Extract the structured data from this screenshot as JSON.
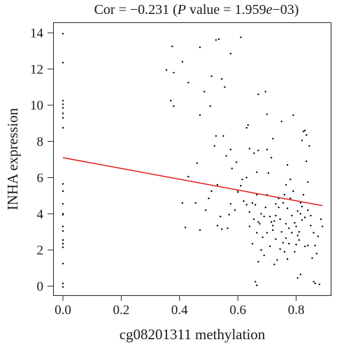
{
  "chart_data": {
    "type": "scatter",
    "title": {
      "prefix": "Cor = −0.231 (",
      "p_italic": "P",
      "middle": " value = 1.959",
      "e_italic": "e",
      "suffix": "−03)"
    },
    "xlabel": "cg08201311 methylation",
    "ylabel": "INHA expression",
    "xlim": [
      0,
      0.9
    ],
    "ylim": [
      -0.5,
      14.5
    ],
    "x_ticks": [
      0.0,
      0.2,
      0.4,
      0.6,
      0.8
    ],
    "x_tick_labels": [
      "0.0",
      "0.2",
      "0.4",
      "0.6",
      "0.8"
    ],
    "y_ticks": [
      0,
      2,
      4,
      6,
      8,
      10,
      12,
      14
    ],
    "y_tick_labels": [
      "0",
      "2",
      "4",
      "6",
      "8",
      "10",
      "12",
      "14"
    ],
    "grid": false,
    "point_color": "#000000",
    "fit_line": {
      "color": "#e31a1c",
      "x": [
        0.0,
        0.89
      ],
      "y": [
        7.1,
        4.45
      ]
    },
    "points": [
      [
        0.0,
        13.95
      ],
      [
        0.0,
        12.35
      ],
      [
        0.0,
        10.25
      ],
      [
        0.0,
        10.05
      ],
      [
        0.0,
        9.85
      ],
      [
        0.0,
        9.55
      ],
      [
        0.0,
        9.3
      ],
      [
        0.0,
        8.75
      ],
      [
        0.0,
        5.65
      ],
      [
        0.0,
        5.25
      ],
      [
        0.0,
        4.55
      ],
      [
        0.0,
        4.0
      ],
      [
        0.0,
        3.95
      ],
      [
        0.0,
        3.3
      ],
      [
        0.0,
        3.05
      ],
      [
        0.0,
        2.55
      ],
      [
        0.0,
        2.35
      ],
      [
        0.0,
        2.15
      ],
      [
        0.0,
        1.25
      ],
      [
        0.0,
        0.15
      ],
      [
        0.0,
        -0.05
      ],
      [
        0.355,
        11.95
      ],
      [
        0.375,
        13.25
      ],
      [
        0.38,
        11.8
      ],
      [
        0.37,
        10.25
      ],
      [
        0.38,
        9.95
      ],
      [
        0.41,
        12.4
      ],
      [
        0.43,
        11.25
      ],
      [
        0.47,
        13.2
      ],
      [
        0.485,
        10.75
      ],
      [
        0.47,
        9.45
      ],
      [
        0.505,
        9.95
      ],
      [
        0.51,
        11.6
      ],
      [
        0.525,
        13.6
      ],
      [
        0.535,
        13.65
      ],
      [
        0.545,
        11.45
      ],
      [
        0.555,
        11.0
      ],
      [
        0.575,
        12.85
      ],
      [
        0.61,
        13.75
      ],
      [
        0.43,
        6.05
      ],
      [
        0.41,
        4.6
      ],
      [
        0.455,
        4.6
      ],
      [
        0.46,
        6.8
      ],
      [
        0.52,
        7.75
      ],
      [
        0.525,
        8.3
      ],
      [
        0.55,
        8.3
      ],
      [
        0.56,
        7.2
      ],
      [
        0.575,
        7.55
      ],
      [
        0.53,
        5.6
      ],
      [
        0.51,
        5.25
      ],
      [
        0.5,
        4.85
      ],
      [
        0.49,
        4.2
      ],
      [
        0.54,
        3.85
      ],
      [
        0.53,
        3.35
      ],
      [
        0.47,
        3.1
      ],
      [
        0.42,
        3.25
      ],
      [
        0.545,
        3.15
      ],
      [
        0.565,
        3.2
      ],
      [
        0.57,
        3.95
      ],
      [
        0.575,
        4.55
      ],
      [
        0.59,
        4.2
      ],
      [
        0.58,
        6.5
      ],
      [
        0.595,
        6.85
      ],
      [
        0.615,
        5.9
      ],
      [
        0.6,
        5.3
      ],
      [
        0.61,
        5.55
      ],
      [
        0.63,
        6.0
      ],
      [
        0.63,
        8.75
      ],
      [
        0.635,
        8.9
      ],
      [
        0.64,
        7.6
      ],
      [
        0.655,
        7.35
      ],
      [
        0.67,
        10.6
      ],
      [
        0.695,
        10.75
      ],
      [
        0.67,
        7.5
      ],
      [
        0.665,
        6.3
      ],
      [
        0.665,
        5.05
      ],
      [
        0.66,
        4.5
      ],
      [
        0.65,
        4.6
      ],
      [
        0.64,
        3.3
      ],
      [
        0.65,
        2.35
      ],
      [
        0.665,
        2.95
      ],
      [
        0.67,
        3.55
      ],
      [
        0.685,
        2.7
      ],
      [
        0.69,
        3.85
      ],
      [
        0.695,
        4.35
      ],
      [
        0.7,
        5.05
      ],
      [
        0.705,
        6.25
      ],
      [
        0.715,
        7.1
      ],
      [
        0.7,
        7.55
      ],
      [
        0.72,
        8.15
      ],
      [
        0.73,
        4.55
      ],
      [
        0.74,
        4.85
      ],
      [
        0.745,
        3.7
      ],
      [
        0.75,
        3.0
      ],
      [
        0.755,
        2.4
      ],
      [
        0.76,
        1.9
      ],
      [
        0.77,
        1.5
      ],
      [
        0.765,
        2.65
      ],
      [
        0.775,
        3.2
      ],
      [
        0.785,
        3.9
      ],
      [
        0.77,
        4.3
      ],
      [
        0.78,
        4.85
      ],
      [
        0.79,
        5.25
      ],
      [
        0.8,
        3.3
      ],
      [
        0.805,
        2.8
      ],
      [
        0.81,
        2.55
      ],
      [
        0.82,
        3.65
      ],
      [
        0.83,
        3.8
      ],
      [
        0.815,
        4.6
      ],
      [
        0.825,
        5.05
      ],
      [
        0.84,
        5.75
      ],
      [
        0.835,
        6.9
      ],
      [
        0.82,
        8.05
      ],
      [
        0.825,
        8.55
      ],
      [
        0.83,
        8.6
      ],
      [
        0.835,
        8.35
      ],
      [
        0.845,
        7.75
      ],
      [
        0.85,
        3.35
      ],
      [
        0.86,
        2.95
      ],
      [
        0.865,
        2.25
      ],
      [
        0.875,
        2.75
      ],
      [
        0.885,
        3.7
      ],
      [
        0.89,
        3.3
      ],
      [
        0.84,
        2.25
      ],
      [
        0.855,
        1.55
      ],
      [
        0.86,
        0.25
      ],
      [
        0.865,
        0.15
      ],
      [
        0.88,
        0.1
      ],
      [
        0.805,
        0.45
      ],
      [
        0.815,
        0.65
      ],
      [
        0.66,
        0.25
      ],
      [
        0.665,
        0.05
      ],
      [
        0.73,
        2.6
      ],
      [
        0.72,
        3.35
      ],
      [
        0.71,
        3.85
      ],
      [
        0.74,
        4.35
      ],
      [
        0.755,
        4.6
      ],
      [
        0.76,
        5.05
      ],
      [
        0.765,
        5.6
      ],
      [
        0.79,
        9.45
      ],
      [
        0.75,
        9.1
      ],
      [
        0.77,
        6.7
      ],
      [
        0.78,
        5.9
      ],
      [
        0.7,
        9.5
      ],
      [
        0.72,
        3.1
      ],
      [
        0.69,
        1.7
      ],
      [
        0.725,
        1.2
      ],
      [
        0.735,
        1.45
      ],
      [
        0.745,
        2.05
      ],
      [
        0.795,
        1.9
      ],
      [
        0.8,
        2.3
      ],
      [
        0.81,
        3.0
      ],
      [
        0.83,
        2.2
      ],
      [
        0.6,
        5.2
      ],
      [
        0.62,
        4.7
      ],
      [
        0.63,
        4.5
      ],
      [
        0.64,
        4.1
      ],
      [
        0.655,
        3.7
      ],
      [
        0.675,
        3.45
      ],
      [
        0.68,
        4.0
      ],
      [
        0.71,
        2.2
      ],
      [
        0.765,
        3.45
      ],
      [
        0.775,
        2.35
      ],
      [
        0.785,
        2.95
      ],
      [
        0.795,
        3.5
      ],
      [
        0.805,
        4.15
      ],
      [
        0.815,
        4.0
      ],
      [
        0.82,
        4.4
      ],
      [
        0.84,
        4.2
      ],
      [
        0.85,
        3.9
      ],
      [
        0.87,
        1.8
      ],
      [
        0.67,
        1.35
      ],
      [
        0.68,
        2.0
      ],
      [
        0.7,
        2.95
      ],
      [
        0.715,
        3.55
      ],
      [
        0.725,
        3.6
      ],
      [
        0.73,
        3.9
      ]
    ]
  }
}
